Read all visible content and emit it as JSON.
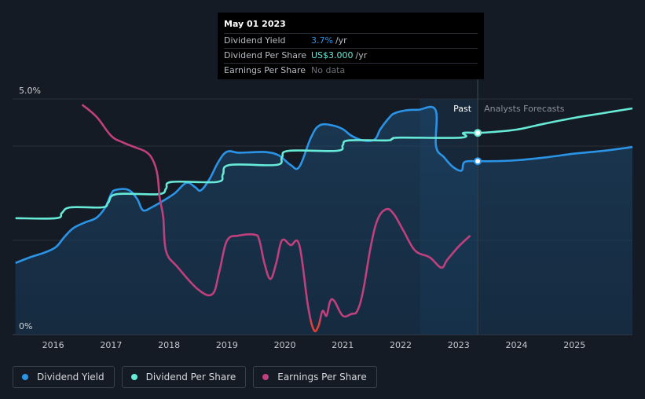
{
  "tooltip": {
    "date": "May 01 2023",
    "rows": [
      {
        "label": "Dividend Yield",
        "value": "3.7%",
        "unit": "/yr"
      },
      {
        "label": "Dividend Per Share",
        "value": "US$3.000",
        "unit": "/yr"
      },
      {
        "label": "Earnings Per Share",
        "value": "No data"
      }
    ]
  },
  "legend": [
    {
      "label": "Dividend Yield",
      "color": "#2b94e6"
    },
    {
      "label": "Dividend Per Share",
      "color": "#67ead7"
    },
    {
      "label": "Earnings Per Share",
      "color": "#c0407e"
    }
  ],
  "colors": {
    "yield": "#2b94e6",
    "dps": "#67ead7",
    "eps": "#c0407e",
    "eps_negative": "#e0403a"
  },
  "chart_data": {
    "type": "line",
    "x_ticks": [
      "2016",
      "2017",
      "2018",
      "2019",
      "2020",
      "2021",
      "2022",
      "2023",
      "2024",
      "2025"
    ],
    "y_ticks": [
      "5.0%",
      "0%"
    ],
    "ylim": [
      0,
      5.0
    ],
    "xlim": [
      2015.3,
      2026.0
    ],
    "region_labels": {
      "past": "Past",
      "forecast": "Analysts Forecasts"
    },
    "forecast_start": 2023.33,
    "highlight_region": [
      2022.33,
      2023.33
    ],
    "series": [
      {
        "name": "Dividend Yield",
        "key": "yield",
        "x": [
          2015.35,
          2015.6,
          2015.85,
          2016.05,
          2016.2,
          2016.35,
          2016.55,
          2016.75,
          2016.9,
          2017.0,
          2017.08,
          2017.3,
          2017.45,
          2017.55,
          2017.7,
          2017.9,
          2018.1,
          2018.3,
          2018.45,
          2018.55,
          2018.7,
          2018.85,
          2019.0,
          2019.2,
          2019.45,
          2019.7,
          2019.9,
          2020.1,
          2020.25,
          2020.45,
          2020.6,
          2020.82,
          2021.0,
          2021.15,
          2021.35,
          2021.55,
          2021.65,
          2021.8,
          2021.9,
          2022.1,
          2022.3,
          2022.6,
          2022.61,
          2022.75,
          2022.9,
          2023.05,
          2023.1,
          2023.3,
          2023.33,
          2023.6,
          2024.0,
          2024.5,
          2025.0,
          2025.5,
          2026.0
        ],
        "values": [
          1.52,
          1.64,
          1.74,
          1.86,
          2.08,
          2.26,
          2.38,
          2.48,
          2.7,
          2.98,
          3.07,
          3.07,
          2.88,
          2.64,
          2.7,
          2.84,
          3.0,
          3.22,
          3.13,
          3.06,
          3.3,
          3.66,
          3.88,
          3.86,
          3.87,
          3.87,
          3.8,
          3.6,
          3.56,
          4.18,
          4.44,
          4.44,
          4.36,
          4.22,
          4.12,
          4.14,
          4.36,
          4.6,
          4.7,
          4.76,
          4.77,
          4.77,
          4.0,
          3.76,
          3.56,
          3.48,
          3.66,
          3.68,
          3.68,
          3.68,
          3.7,
          3.76,
          3.84,
          3.9,
          3.98
        ]
      },
      {
        "name": "Dividend Per Share",
        "key": "dps",
        "x": [
          2015.35,
          2016.05,
          2016.15,
          2016.3,
          2016.85,
          2016.95,
          2017.1,
          2017.82,
          2017.95,
          2018.05,
          2018.83,
          2018.93,
          2019.05,
          2019.85,
          2019.95,
          2020.07,
          2020.9,
          2021.0,
          2021.1,
          2021.75,
          2021.85,
          2022.0,
          2023.05,
          2023.08,
          2023.33,
          2023.6,
          2024.0,
          2024.5,
          2025.0,
          2025.5,
          2026.0
        ],
        "values": [
          2.47,
          2.47,
          2.58,
          2.7,
          2.7,
          2.8,
          2.98,
          2.98,
          3.1,
          3.24,
          3.24,
          3.4,
          3.6,
          3.6,
          3.76,
          3.9,
          3.9,
          4.02,
          4.12,
          4.12,
          4.15,
          4.18,
          4.18,
          4.28,
          4.28,
          4.3,
          4.35,
          4.48,
          4.6,
          4.7,
          4.8
        ]
      },
      {
        "name": "Earnings Per Share",
        "key": "eps",
        "x": [
          2016.5,
          2016.75,
          2017.0,
          2017.2,
          2017.4,
          2017.6,
          2017.72,
          2017.8,
          2017.84,
          2017.9,
          2017.95,
          2018.15,
          2018.5,
          2018.75,
          2018.87,
          2019.0,
          2019.2,
          2019.48,
          2019.56,
          2019.65,
          2019.75,
          2019.85,
          2019.95,
          2020.1,
          2020.25,
          2020.4,
          2020.5,
          2020.58,
          2020.65,
          2020.72,
          2020.78,
          2020.85,
          2021.0,
          2021.15,
          2021.25,
          2021.35,
          2021.48,
          2021.6,
          2021.75,
          2021.88,
          2022.05,
          2022.25,
          2022.5,
          2022.7,
          2022.8,
          2023.0,
          2023.2
        ],
        "values": [
          4.88,
          4.62,
          4.22,
          4.08,
          3.98,
          3.88,
          3.71,
          3.4,
          2.9,
          2.5,
          1.77,
          1.43,
          0.96,
          0.86,
          1.34,
          1.99,
          2.1,
          2.12,
          2.0,
          1.5,
          1.18,
          1.51,
          2.0,
          1.9,
          1.9,
          0.6,
          0.1,
          0.18,
          0.5,
          0.4,
          0.7,
          0.72,
          0.4,
          0.44,
          0.5,
          0.92,
          1.85,
          2.44,
          2.66,
          2.56,
          2.2,
          1.78,
          1.64,
          1.42,
          1.58,
          1.87,
          2.1
        ]
      }
    ],
    "markers": [
      {
        "series": "dps",
        "x": 2023.33,
        "value": 4.28
      },
      {
        "series": "yield",
        "x": 2023.33,
        "value": 3.68
      }
    ]
  }
}
